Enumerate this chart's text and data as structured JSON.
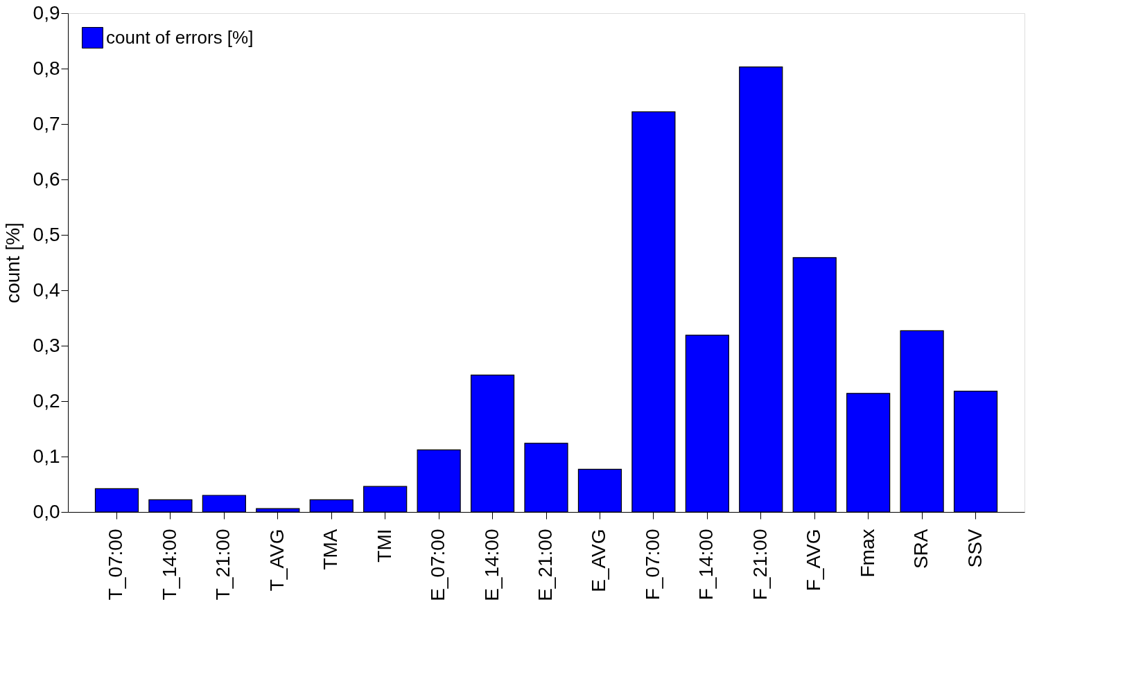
{
  "chart_data": {
    "type": "bar",
    "ylabel": "count [%]",
    "categories": [
      "T_07:00",
      "T_14:00",
      "T_21:00",
      "T_AVG",
      "TMA",
      "TMI",
      "E_07:00",
      "E_14:00",
      "E_21:00",
      "E_AVG",
      "F_07:00",
      "F_14:00",
      "F_21:00",
      "F_AVG",
      "Fmax",
      "SRA",
      "SSV"
    ],
    "series": [
      {
        "name": "count of errors [%]",
        "color": "#0000ff",
        "values": [
          0.042,
          0.022,
          0.03,
          0.006,
          0.022,
          0.046,
          0.112,
          0.247,
          0.124,
          0.077,
          0.722,
          0.319,
          0.803,
          0.459,
          0.214,
          0.327,
          0.218
        ]
      }
    ],
    "ylim": [
      0,
      0.9
    ],
    "yticks": [
      {
        "value": 0,
        "label": "0,0"
      },
      {
        "value": 0.1,
        "label": "0,1"
      },
      {
        "value": 0.2,
        "label": "0,2"
      },
      {
        "value": 0.3,
        "label": "0,3"
      },
      {
        "value": 0.4,
        "label": "0,4"
      },
      {
        "value": 0.5,
        "label": "0,5"
      },
      {
        "value": 0.6,
        "label": "0,6"
      },
      {
        "value": 0.7,
        "label": "0,7"
      },
      {
        "value": 0.8,
        "label": "0,8"
      },
      {
        "value": 0.9,
        "label": "0,9"
      }
    ],
    "grid": false,
    "legend": "top left"
  }
}
